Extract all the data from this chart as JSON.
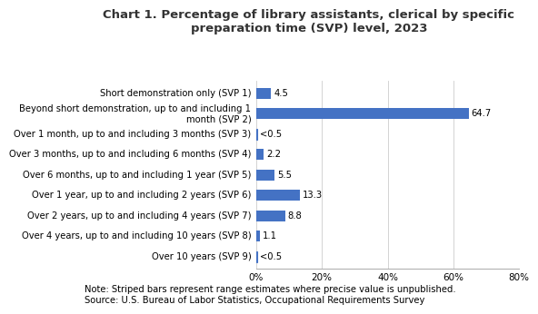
{
  "title_line1": "Chart 1. Percentage of library assistants, clerical by specific",
  "title_line2": "preparation time (SVP) level, 2023",
  "categories": [
    "Short demonstration only (SVP 1)",
    "Beyond short demonstration, up to and including 1\nmonth (SVP 2)",
    "Over 1 month, up to and including 3 months (SVP 3)",
    "Over 3 months, up to and including 6 months (SVP 4)",
    "Over 6 months, up to and including 1 year (SVP 5)",
    "Over 1 year, up to and including 2 years (SVP 6)",
    "Over 2 years, up to and including 4 years (SVP 7)",
    "Over 4 years, up to and including 10 years (SVP 8)",
    "Over 10 years (SVP 9)"
  ],
  "values": [
    4.5,
    64.7,
    0.3,
    2.2,
    5.5,
    13.3,
    8.8,
    1.1,
    0.3
  ],
  "labels": [
    "4.5",
    "64.7",
    "<0.5",
    "2.2",
    "5.5",
    "13.3",
    "8.8",
    "1.1",
    "<0.5"
  ],
  "striped": [
    false,
    false,
    true,
    false,
    false,
    false,
    false,
    false,
    true
  ],
  "bar_color": "#4472C4",
  "xlim": [
    0,
    80
  ],
  "xticks": [
    0,
    20,
    40,
    60,
    80
  ],
  "xticklabels": [
    "0%",
    "20%",
    "40%",
    "60%",
    "80%"
  ],
  "note_line1": "Note: Striped bars represent range estimates where precise value is unpublished.",
  "note_line2": "Source: U.S. Bureau of Labor Statistics, Occupational Requirements Survey",
  "background_color": "#ffffff",
  "title_fontsize": 9.5,
  "label_fontsize": 7.2,
  "tick_fontsize": 7.5,
  "note_fontsize": 7.2,
  "bar_height": 0.52,
  "title_color": "#333333",
  "grid_color": "#cccccc",
  "spine_color": "#aaaaaa"
}
